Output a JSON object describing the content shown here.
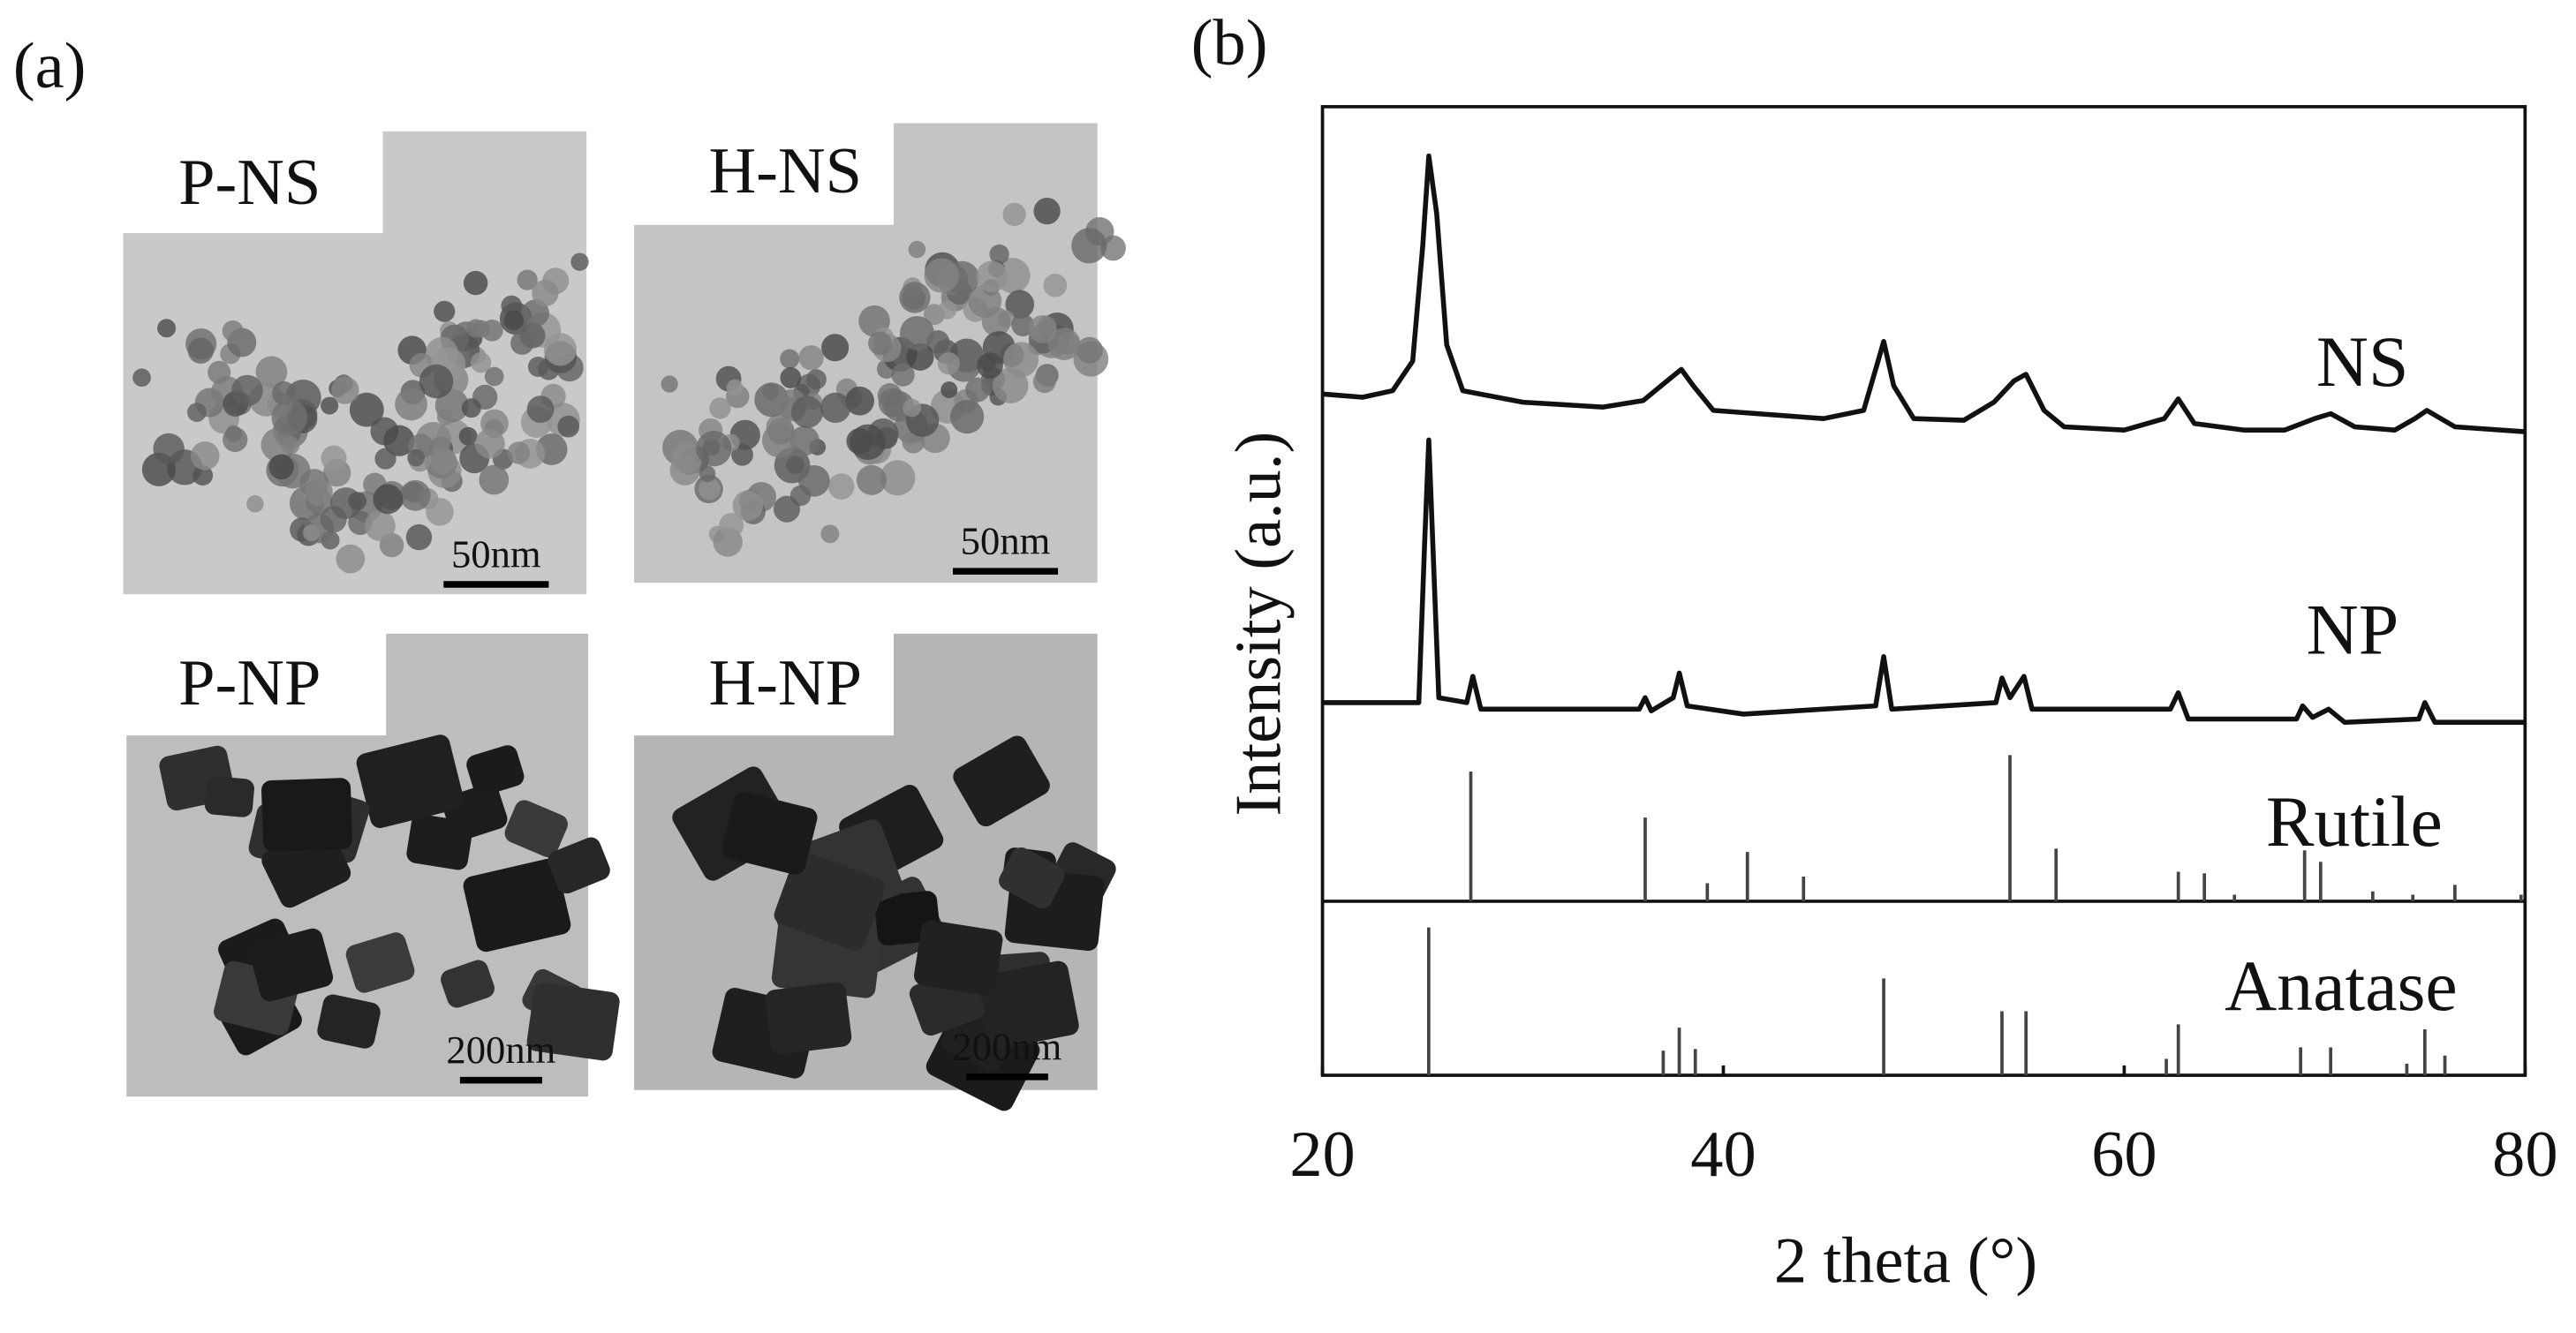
{
  "panel_a": {
    "label": "(a)",
    "images": [
      {
        "label": "P-NS",
        "scale_bar": "50nm"
      },
      {
        "label": "H-NS",
        "scale_bar": "50nm"
      },
      {
        "label": "P-NP",
        "scale_bar": "200nm"
      },
      {
        "label": "H-NP",
        "scale_bar": "200nm"
      }
    ]
  },
  "chart_data": {
    "type": "line",
    "panel_label": "(b)",
    "x_label": "2 theta (°)",
    "y_label": "Intensity (a.u.)",
    "xlim": [
      20,
      80
    ],
    "xticks": [
      20,
      40,
      60,
      80
    ],
    "ylim": [
      0,
      590
    ],
    "series": [
      {
        "name": "NS",
        "color": "#111111",
        "style": "line",
        "x": [
          20,
          22,
          23.5,
          24.5,
          25,
          25.3,
          25.7,
          26.2,
          27,
          30,
          34,
          36,
          37.2,
          37.9,
          38.5,
          39.5,
          45,
          47,
          47.6,
          48,
          48.5,
          49.5,
          52,
          53.5,
          54.5,
          55.1,
          56,
          57,
          60,
          62,
          62.7,
          63.5,
          66,
          68,
          69.5,
          70.3,
          71.5,
          73.5,
          74.5,
          75.1,
          76.5,
          80
        ],
        "values": [
          415,
          413,
          417,
          435,
          505,
          560,
          525,
          445,
          417,
          410,
          407,
          411,
          423,
          430,
          420,
          405,
          400,
          405,
          430,
          447,
          420,
          400,
          399,
          410,
          423,
          427,
          405,
          395,
          393,
          400,
          412,
          397,
          393,
          393,
          400,
          403,
          395,
          393,
          400,
          405,
          395,
          392
        ]
      },
      {
        "name": "NP",
        "color": "#111111",
        "style": "line",
        "x": [
          20,
          24.8,
          25.1,
          25.3,
          25.5,
          25.8,
          27.2,
          27.5,
          27.9,
          35.8,
          36.1,
          36.4,
          37.5,
          37.8,
          38.2,
          41,
          47.6,
          48.0,
          48.4,
          53.6,
          53.9,
          54.3,
          55.0,
          55.4,
          62.3,
          62.7,
          63.2,
          68.6,
          68.9,
          69.4,
          70.2,
          71,
          74.7,
          75.0,
          75.5,
          80
        ],
        "values": [
          227,
          227,
          325,
          387,
          325,
          230,
          227,
          243,
          223,
          223,
          230,
          222,
          230,
          245,
          225,
          220,
          225,
          255,
          223,
          227,
          242,
          230,
          243,
          223,
          223,
          233,
          217,
          217,
          225,
          218,
          223,
          215,
          217,
          227,
          215,
          215
        ]
      },
      {
        "name": "Rutile",
        "color": "#444444",
        "style": "stick",
        "x": [
          27.4,
          36.1,
          39.2,
          41.2,
          44.0,
          54.3,
          56.6,
          62.7,
          64.0,
          65.5,
          69.0,
          69.8,
          72.4,
          74.4,
          76.5,
          79.8
        ],
        "values": [
          185,
          157,
          117,
          136,
          121,
          195,
          138,
          124,
          123,
          110,
          137,
          130,
          112,
          110,
          116,
          110
        ]
      },
      {
        "name": "Anatase",
        "color": "#444444",
        "style": "stick",
        "x": [
          25.3,
          37.0,
          37.8,
          38.6,
          48.0,
          53.9,
          55.1,
          62.1,
          62.7,
          68.8,
          70.3,
          74.1,
          75.0,
          76.0
        ],
        "values": [
          90,
          15,
          29,
          16,
          59,
          39,
          39,
          10,
          31,
          17,
          17,
          7,
          28,
          12
        ]
      }
    ]
  }
}
